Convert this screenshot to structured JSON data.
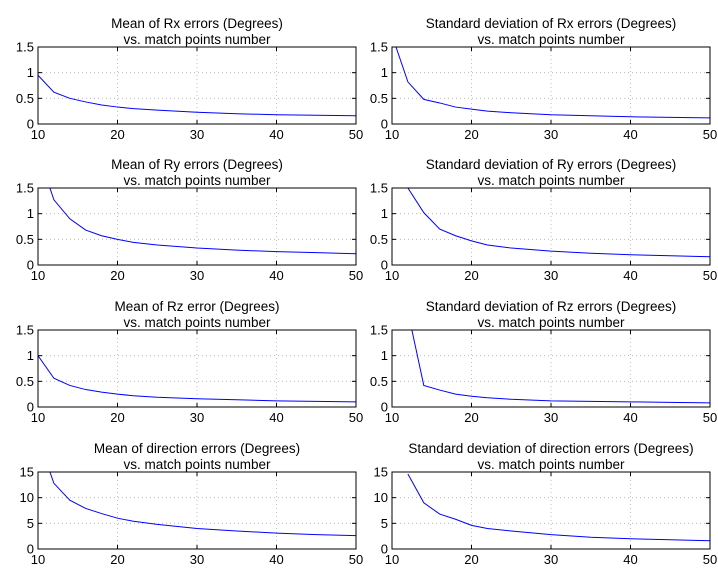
{
  "chart_data": [
    {
      "type": "line",
      "title": [
        "Mean of Rx errors (Degrees)",
        "vs. match points number"
      ],
      "xlim": [
        10,
        50
      ],
      "ylim": [
        0,
        1.5
      ],
      "xticks": [
        "10",
        "20",
        "30",
        "40",
        "50"
      ],
      "yticks": [
        "0",
        "0.5",
        "1",
        "1.5"
      ],
      "grid": true,
      "series": [
        {
          "color": "#0000ff",
          "x": [
            10,
            12,
            14,
            16,
            18,
            20,
            22,
            25,
            30,
            35,
            40,
            45,
            50
          ],
          "y": [
            0.95,
            0.62,
            0.5,
            0.43,
            0.37,
            0.33,
            0.3,
            0.27,
            0.23,
            0.2,
            0.18,
            0.17,
            0.16
          ]
        }
      ]
    },
    {
      "type": "line",
      "title": [
        "Standard deviation of Rx errors (Degrees)",
        "vs. match points number"
      ],
      "xlim": [
        10,
        50
      ],
      "ylim": [
        0,
        1.5
      ],
      "xticks": [
        "10",
        "20",
        "30",
        "40",
        "50"
      ],
      "yticks": [
        "0",
        "0.5",
        "1",
        "1.5"
      ],
      "grid": true,
      "series": [
        {
          "color": "#0000ff",
          "x": [
            10.5,
            12,
            14,
            16,
            18,
            20,
            22,
            25,
            30,
            35,
            40,
            45,
            50
          ],
          "y": [
            1.5,
            0.82,
            0.48,
            0.41,
            0.33,
            0.29,
            0.25,
            0.22,
            0.18,
            0.16,
            0.14,
            0.13,
            0.12
          ]
        }
      ]
    },
    {
      "type": "line",
      "title": [
        "Mean of Ry errors (Degrees)",
        "vs. match points number"
      ],
      "xlim": [
        10,
        50
      ],
      "ylim": [
        0,
        1.5
      ],
      "xticks": [
        "10",
        "20",
        "30",
        "40",
        "50"
      ],
      "yticks": [
        "0",
        "0.5",
        "1",
        "1.5"
      ],
      "grid": true,
      "series": [
        {
          "color": "#0000ff",
          "x": [
            11.5,
            12,
            14,
            16,
            18,
            20,
            22,
            25,
            30,
            35,
            40,
            45,
            50
          ],
          "y": [
            1.5,
            1.27,
            0.9,
            0.68,
            0.57,
            0.5,
            0.44,
            0.39,
            0.33,
            0.29,
            0.26,
            0.24,
            0.22
          ]
        }
      ]
    },
    {
      "type": "line",
      "title": [
        "Standard deviation of Ry errors (Degrees)",
        "vs. match points number"
      ],
      "xlim": [
        10,
        50
      ],
      "ylim": [
        0,
        1.5
      ],
      "xticks": [
        "10",
        "20",
        "30",
        "40",
        "50"
      ],
      "yticks": [
        "0",
        "0.5",
        "1",
        "1.5"
      ],
      "grid": true,
      "series": [
        {
          "color": "#0000ff",
          "x": [
            12,
            14,
            16,
            18,
            20,
            22,
            25,
            30,
            35,
            40,
            45,
            50
          ],
          "y": [
            1.5,
            1.02,
            0.7,
            0.57,
            0.47,
            0.39,
            0.33,
            0.27,
            0.23,
            0.2,
            0.18,
            0.16
          ]
        }
      ]
    },
    {
      "type": "line",
      "title": [
        "Mean of Rz error (Degrees)",
        "vs. match points number"
      ],
      "xlim": [
        10,
        50
      ],
      "ylim": [
        0,
        1.5
      ],
      "xticks": [
        "10",
        "20",
        "30",
        "40",
        "50"
      ],
      "yticks": [
        "0",
        "0.5",
        "1",
        "1.5"
      ],
      "grid": true,
      "series": [
        {
          "color": "#0000ff",
          "x": [
            10,
            12,
            14,
            16,
            18,
            20,
            22,
            25,
            30,
            35,
            40,
            45,
            50
          ],
          "y": [
            1.0,
            0.56,
            0.42,
            0.34,
            0.29,
            0.25,
            0.22,
            0.19,
            0.16,
            0.14,
            0.12,
            0.11,
            0.1
          ]
        }
      ]
    },
    {
      "type": "line",
      "title": [
        "Standard deviation of Rz errors (Degrees)",
        "vs. match points number"
      ],
      "xlim": [
        10,
        50
      ],
      "ylim": [
        0,
        1.5
      ],
      "xticks": [
        "10",
        "20",
        "30",
        "40",
        "50"
      ],
      "yticks": [
        "0",
        "0.5",
        "1",
        "1.5"
      ],
      "grid": true,
      "series": [
        {
          "color": "#0000ff",
          "x": [
            12.5,
            14,
            16,
            18,
            20,
            22,
            25,
            30,
            35,
            40,
            45,
            50
          ],
          "y": [
            1.5,
            0.42,
            0.33,
            0.25,
            0.21,
            0.18,
            0.15,
            0.12,
            0.11,
            0.1,
            0.09,
            0.08
          ]
        }
      ]
    },
    {
      "type": "line",
      "title": [
        "Mean of direction errors (Degrees)",
        "vs. match points number"
      ],
      "xlim": [
        10,
        50
      ],
      "ylim": [
        0,
        15
      ],
      "xticks": [
        "10",
        "20",
        "30",
        "40",
        "50"
      ],
      "yticks": [
        "0",
        "5",
        "10",
        "15"
      ],
      "grid": true,
      "series": [
        {
          "color": "#0000ff",
          "x": [
            11.5,
            12,
            14,
            16,
            18,
            20,
            22,
            25,
            30,
            35,
            40,
            45,
            50
          ],
          "y": [
            15,
            12.8,
            9.5,
            7.9,
            6.9,
            6.0,
            5.4,
            4.8,
            4.0,
            3.5,
            3.1,
            2.8,
            2.6
          ]
        }
      ]
    },
    {
      "type": "line",
      "title": [
        "Standard deviation of direction errors (Degrees)",
        "vs. match points number"
      ],
      "xlim": [
        10,
        50
      ],
      "ylim": [
        0,
        15
      ],
      "xticks": [
        "10",
        "20",
        "30",
        "40",
        "50"
      ],
      "yticks": [
        "0",
        "5",
        "10",
        "15"
      ],
      "grid": true,
      "series": [
        {
          "color": "#0000ff",
          "x": [
            12,
            14,
            16,
            18,
            20,
            22,
            25,
            30,
            35,
            40,
            45,
            50
          ],
          "y": [
            14.6,
            9.0,
            6.8,
            5.8,
            4.6,
            4.0,
            3.5,
            2.8,
            2.3,
            2.0,
            1.8,
            1.6
          ]
        }
      ]
    }
  ]
}
